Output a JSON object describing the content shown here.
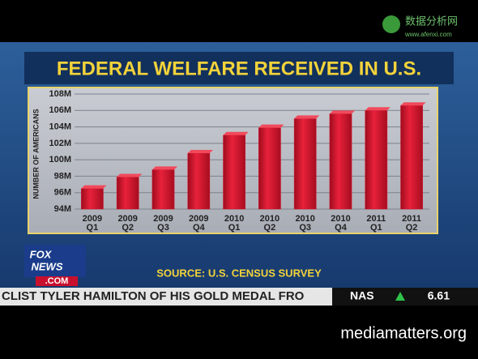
{
  "chart_data": {
    "type": "bar",
    "title": "FEDERAL WELFARE RECEIVED IN U.S.",
    "y_label": "NUMBER OF AMERICANS",
    "source": "SOURCE: U.S. CENSUS SURVEY",
    "categories": [
      "2009 Q1",
      "2009 Q2",
      "2009 Q3",
      "2009 Q4",
      "2010 Q1",
      "2010 Q2",
      "2010 Q3",
      "2010 Q4",
      "2011 Q1",
      "2011 Q2"
    ],
    "values": [
      96.5,
      97.9,
      98.8,
      100.8,
      103,
      103.9,
      105,
      105.6,
      106,
      106.6
    ],
    "color": "#d8102a",
    "ylim": [
      94,
      108
    ],
    "yticks": [
      {
        "value": 94,
        "label": "94M"
      },
      {
        "value": 96,
        "label": "96M"
      },
      {
        "value": 98,
        "label": "98M"
      },
      {
        "value": 100,
        "label": "100M"
      },
      {
        "value": 102,
        "label": "102M"
      },
      {
        "value": 104,
        "label": "104M"
      },
      {
        "value": 106,
        "label": "106M"
      },
      {
        "value": 108,
        "label": "108M"
      }
    ],
    "grid": true
  },
  "ui": {
    "logo_fox": "FOX",
    "logo_news": "NEWS",
    "logo_com": ".COM",
    "ticker": "CLIST TYLER HAMILTON OF HIS GOLD MEDAL FRO",
    "ticker_symbol": "NAS",
    "ticker_value": "6.61",
    "watermark": "数据分析网",
    "watermark_url": "www.afenxi.com",
    "footer": "mediamatters.org"
  }
}
